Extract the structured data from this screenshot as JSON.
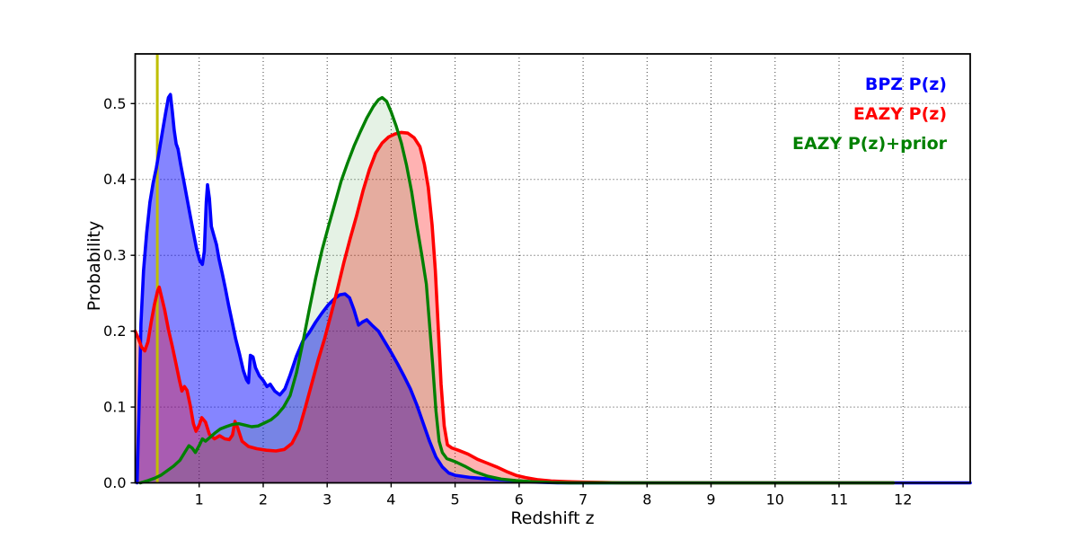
{
  "chart_data": {
    "type": "area",
    "title": "",
    "xlabel": "Redshift z",
    "ylabel": "Probability",
    "xlim": [
      0,
      13.05
    ],
    "ylim": [
      0,
      0.5655
    ],
    "grid": true,
    "grid_style": "dotted",
    "legend_position": "upper right",
    "x_ticks": [
      1,
      2,
      3,
      4,
      5,
      6,
      7,
      8,
      9,
      10,
      11,
      12
    ],
    "x_tick_labels": [
      "1",
      "2",
      "3",
      "4",
      "5",
      "6",
      "7",
      "8",
      "9",
      "10",
      "11",
      "12"
    ],
    "y_ticks": [
      0,
      0.1,
      0.2,
      0.3,
      0.4,
      0.5
    ],
    "y_tick_labels": [
      "0.0",
      "0.1",
      "0.2",
      "0.3",
      "0.4",
      "0.5"
    ],
    "vline": {
      "x": 0.345,
      "color": "#bfbf00",
      "width": 3
    },
    "series": [
      {
        "id": "bpz",
        "name": "BPZ P(z)",
        "color": "#0000ff",
        "fill_opacity": 0.48,
        "line_width": 3.6,
        "points": [
          [
            0.03,
            0
          ],
          [
            0.06,
            0.1
          ],
          [
            0.09,
            0.21
          ],
          [
            0.13,
            0.28
          ],
          [
            0.18,
            0.33
          ],
          [
            0.23,
            0.37
          ],
          [
            0.28,
            0.395
          ],
          [
            0.33,
            0.415
          ],
          [
            0.38,
            0.44
          ],
          [
            0.43,
            0.465
          ],
          [
            0.48,
            0.49
          ],
          [
            0.52,
            0.508
          ],
          [
            0.55,
            0.512
          ],
          [
            0.58,
            0.49
          ],
          [
            0.61,
            0.465
          ],
          [
            0.64,
            0.447
          ],
          [
            0.67,
            0.44
          ],
          [
            0.71,
            0.42
          ],
          [
            0.76,
            0.398
          ],
          [
            0.81,
            0.375
          ],
          [
            0.86,
            0.352
          ],
          [
            0.91,
            0.33
          ],
          [
            0.96,
            0.308
          ],
          [
            1.01,
            0.293
          ],
          [
            1.05,
            0.288
          ],
          [
            1.08,
            0.305
          ],
          [
            1.11,
            0.37
          ],
          [
            1.13,
            0.393
          ],
          [
            1.16,
            0.375
          ],
          [
            1.19,
            0.338
          ],
          [
            1.23,
            0.326
          ],
          [
            1.27,
            0.314
          ],
          [
            1.31,
            0.295
          ],
          [
            1.36,
            0.276
          ],
          [
            1.41,
            0.256
          ],
          [
            1.46,
            0.234
          ],
          [
            1.51,
            0.214
          ],
          [
            1.57,
            0.19
          ],
          [
            1.63,
            0.17
          ],
          [
            1.69,
            0.148
          ],
          [
            1.74,
            0.136
          ],
          [
            1.77,
            0.132
          ],
          [
            1.8,
            0.168
          ],
          [
            1.84,
            0.166
          ],
          [
            1.88,
            0.152
          ],
          [
            1.94,
            0.141
          ],
          [
            2.0,
            0.135
          ],
          [
            2.06,
            0.127
          ],
          [
            2.11,
            0.13
          ],
          [
            2.18,
            0.121
          ],
          [
            2.26,
            0.116
          ],
          [
            2.34,
            0.124
          ],
          [
            2.42,
            0.142
          ],
          [
            2.52,
            0.167
          ],
          [
            2.62,
            0.187
          ],
          [
            2.72,
            0.198
          ],
          [
            2.82,
            0.212
          ],
          [
            2.92,
            0.224
          ],
          [
            3.02,
            0.235
          ],
          [
            3.12,
            0.243
          ],
          [
            3.2,
            0.248
          ],
          [
            3.28,
            0.249
          ],
          [
            3.35,
            0.244
          ],
          [
            3.42,
            0.228
          ],
          [
            3.49,
            0.208
          ],
          [
            3.55,
            0.212
          ],
          [
            3.62,
            0.215
          ],
          [
            3.7,
            0.208
          ],
          [
            3.8,
            0.2
          ],
          [
            3.9,
            0.186
          ],
          [
            4.0,
            0.172
          ],
          [
            4.1,
            0.157
          ],
          [
            4.2,
            0.141
          ],
          [
            4.3,
            0.124
          ],
          [
            4.4,
            0.103
          ],
          [
            4.5,
            0.079
          ],
          [
            4.6,
            0.055
          ],
          [
            4.7,
            0.034
          ],
          [
            4.8,
            0.021
          ],
          [
            4.9,
            0.013
          ],
          [
            5.0,
            0.01
          ],
          [
            5.25,
            0.007
          ],
          [
            5.55,
            0.005
          ],
          [
            5.9,
            0.003
          ],
          [
            6.25,
            0.001
          ],
          [
            6.6,
            0
          ],
          [
            13.05,
            0
          ]
        ]
      },
      {
        "id": "eazy",
        "name": "EAZY P(z)",
        "color": "#ff0000",
        "fill_opacity": 0.3,
        "line_width": 3.6,
        "points": [
          [
            0,
            0.2
          ],
          [
            0.05,
            0.19
          ],
          [
            0.1,
            0.179
          ],
          [
            0.15,
            0.174
          ],
          [
            0.2,
            0.186
          ],
          [
            0.25,
            0.212
          ],
          [
            0.3,
            0.235
          ],
          [
            0.35,
            0.253
          ],
          [
            0.375,
            0.258
          ],
          [
            0.41,
            0.246
          ],
          [
            0.46,
            0.228
          ],
          [
            0.52,
            0.202
          ],
          [
            0.58,
            0.18
          ],
          [
            0.64,
            0.156
          ],
          [
            0.69,
            0.136
          ],
          [
            0.73,
            0.121
          ],
          [
            0.77,
            0.127
          ],
          [
            0.81,
            0.122
          ],
          [
            0.86,
            0.102
          ],
          [
            0.91,
            0.078
          ],
          [
            0.95,
            0.068
          ],
          [
            1.0,
            0.076
          ],
          [
            1.04,
            0.086
          ],
          [
            1.1,
            0.08
          ],
          [
            1.16,
            0.064
          ],
          [
            1.24,
            0.058
          ],
          [
            1.32,
            0.062
          ],
          [
            1.4,
            0.058
          ],
          [
            1.47,
            0.057
          ],
          [
            1.52,
            0.063
          ],
          [
            1.56,
            0.081
          ],
          [
            1.6,
            0.073
          ],
          [
            1.67,
            0.055
          ],
          [
            1.77,
            0.048
          ],
          [
            1.9,
            0.045
          ],
          [
            2.05,
            0.043
          ],
          [
            2.2,
            0.042
          ],
          [
            2.33,
            0.044
          ],
          [
            2.45,
            0.052
          ],
          [
            2.56,
            0.07
          ],
          [
            2.66,
            0.1
          ],
          [
            2.76,
            0.131
          ],
          [
            2.86,
            0.162
          ],
          [
            2.96,
            0.19
          ],
          [
            3.06,
            0.222
          ],
          [
            3.16,
            0.255
          ],
          [
            3.26,
            0.29
          ],
          [
            3.36,
            0.322
          ],
          [
            3.46,
            0.352
          ],
          [
            3.56,
            0.385
          ],
          [
            3.66,
            0.413
          ],
          [
            3.76,
            0.435
          ],
          [
            3.86,
            0.448
          ],
          [
            3.96,
            0.456
          ],
          [
            4.06,
            0.46
          ],
          [
            4.16,
            0.462
          ],
          [
            4.26,
            0.461
          ],
          [
            4.36,
            0.455
          ],
          [
            4.45,
            0.443
          ],
          [
            4.52,
            0.42
          ],
          [
            4.58,
            0.39
          ],
          [
            4.64,
            0.34
          ],
          [
            4.69,
            0.28
          ],
          [
            4.73,
            0.215
          ],
          [
            4.78,
            0.13
          ],
          [
            4.83,
            0.075
          ],
          [
            4.88,
            0.05
          ],
          [
            4.95,
            0.046
          ],
          [
            5.05,
            0.043
          ],
          [
            5.2,
            0.038
          ],
          [
            5.35,
            0.031
          ],
          [
            5.5,
            0.026
          ],
          [
            5.65,
            0.021
          ],
          [
            5.8,
            0.015
          ],
          [
            5.95,
            0.01
          ],
          [
            6.1,
            0.007
          ],
          [
            6.3,
            0.004
          ],
          [
            6.5,
            0.0025
          ],
          [
            6.75,
            0.0015
          ],
          [
            7.0,
            0.001
          ],
          [
            7.3,
            0.0005
          ],
          [
            7.6,
            0
          ],
          [
            11.85,
            0
          ]
        ]
      },
      {
        "id": "eazy-prior",
        "name": "EAZY P(z)+prior",
        "color": "#008000",
        "fill_opacity": 0.1,
        "line_width": 3.4,
        "points": [
          [
            0.08,
            0
          ],
          [
            0.2,
            0.003
          ],
          [
            0.3,
            0.006
          ],
          [
            0.4,
            0.01
          ],
          [
            0.5,
            0.016
          ],
          [
            0.6,
            0.022
          ],
          [
            0.7,
            0.03
          ],
          [
            0.78,
            0.041
          ],
          [
            0.84,
            0.049
          ],
          [
            0.89,
            0.046
          ],
          [
            0.94,
            0.04
          ],
          [
            1.0,
            0.049
          ],
          [
            1.05,
            0.058
          ],
          [
            1.1,
            0.055
          ],
          [
            1.17,
            0.06
          ],
          [
            1.25,
            0.066
          ],
          [
            1.33,
            0.071
          ],
          [
            1.42,
            0.074
          ],
          [
            1.52,
            0.077
          ],
          [
            1.62,
            0.078
          ],
          [
            1.72,
            0.076
          ],
          [
            1.82,
            0.074
          ],
          [
            1.92,
            0.075
          ],
          [
            2.02,
            0.079
          ],
          [
            2.12,
            0.083
          ],
          [
            2.22,
            0.09
          ],
          [
            2.32,
            0.1
          ],
          [
            2.42,
            0.115
          ],
          [
            2.52,
            0.145
          ],
          [
            2.62,
            0.185
          ],
          [
            2.72,
            0.228
          ],
          [
            2.82,
            0.27
          ],
          [
            2.92,
            0.307
          ],
          [
            3.02,
            0.338
          ],
          [
            3.12,
            0.368
          ],
          [
            3.22,
            0.398
          ],
          [
            3.32,
            0.422
          ],
          [
            3.42,
            0.444
          ],
          [
            3.52,
            0.463
          ],
          [
            3.62,
            0.481
          ],
          [
            3.72,
            0.496
          ],
          [
            3.8,
            0.505
          ],
          [
            3.86,
            0.508
          ],
          [
            3.93,
            0.503
          ],
          [
            4.0,
            0.489
          ],
          [
            4.08,
            0.47
          ],
          [
            4.16,
            0.448
          ],
          [
            4.24,
            0.419
          ],
          [
            4.32,
            0.384
          ],
          [
            4.4,
            0.34
          ],
          [
            4.48,
            0.3
          ],
          [
            4.55,
            0.262
          ],
          [
            4.6,
            0.21
          ],
          [
            4.65,
            0.155
          ],
          [
            4.7,
            0.095
          ],
          [
            4.75,
            0.055
          ],
          [
            4.8,
            0.04
          ],
          [
            4.87,
            0.032
          ],
          [
            5.0,
            0.028
          ],
          [
            5.15,
            0.022
          ],
          [
            5.3,
            0.015
          ],
          [
            5.5,
            0.009
          ],
          [
            5.72,
            0.005
          ],
          [
            5.95,
            0.003
          ],
          [
            6.2,
            0.0015
          ],
          [
            6.5,
            0.0005
          ],
          [
            6.8,
            0
          ],
          [
            11.85,
            0
          ]
        ]
      }
    ]
  }
}
